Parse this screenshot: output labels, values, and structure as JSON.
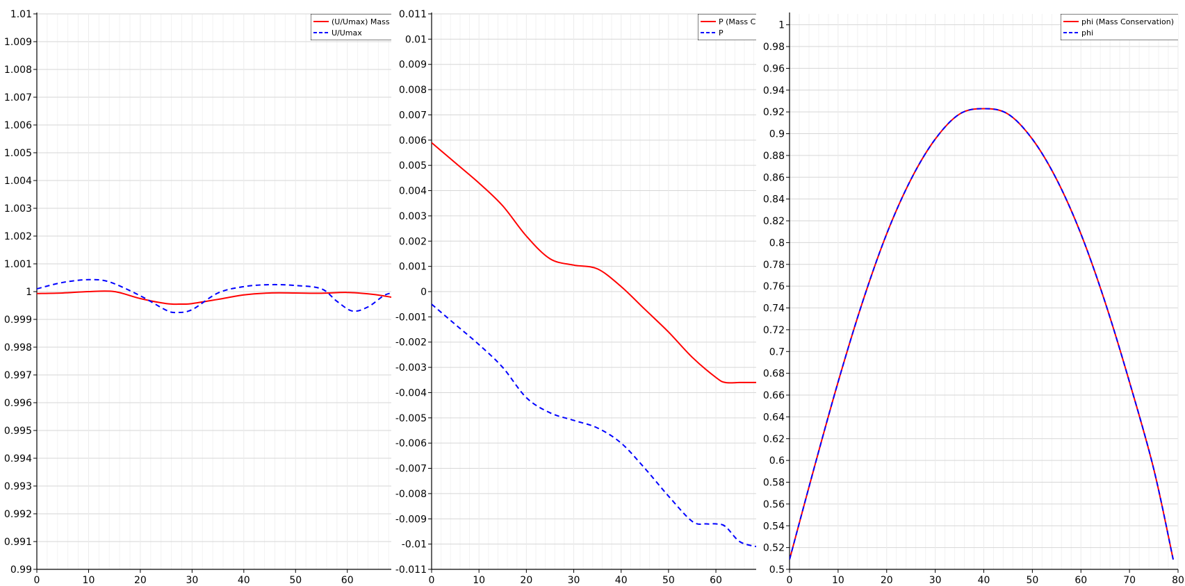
{
  "chart_data": [
    {
      "type": "line",
      "title": "",
      "xlabel": "",
      "ylabel": "",
      "xlim": [
        0,
        68.5
      ],
      "ylim": [
        0.99,
        1.01
      ],
      "xticks": [
        "0",
        "10",
        "20",
        "30",
        "40",
        "50",
        "60"
      ],
      "yticks": [
        "0.99",
        "0.991",
        "0.992",
        "0.993",
        "0.994",
        "0.995",
        "0.996",
        "0.997",
        "0.998",
        "0.999",
        "1",
        "1.001",
        "1.002",
        "1.003",
        "1.004",
        "1.005",
        "1.006",
        "1.007",
        "1.008",
        "1.009",
        "1.01"
      ],
      "grid": true,
      "legend_position": "top-right",
      "series": [
        {
          "name": "(U/Umax) Mass",
          "color": "#ff0000",
          "dash": "solid",
          "x": [
            0,
            5,
            10,
            15,
            20,
            25,
            28,
            30,
            35,
            40,
            45,
            50,
            55,
            60,
            65,
            68.5
          ],
          "y": [
            0.99993,
            0.99995,
            1.0,
            1.0,
            0.99975,
            0.99957,
            0.99955,
            0.99957,
            0.99972,
            0.99988,
            0.99995,
            0.99995,
            0.99994,
            0.99997,
            0.9999,
            0.9998
          ]
        },
        {
          "name": "U/Umax",
          "color": "#0000ff",
          "dash": "dashed",
          "x": [
            0,
            5,
            10,
            14,
            20,
            25,
            27,
            30,
            35,
            40,
            45,
            50,
            55,
            58,
            61,
            64,
            67,
            68.5
          ],
          "y": [
            1.0001,
            1.00033,
            1.00043,
            1.00035,
            0.99985,
            0.99933,
            0.99925,
            0.99935,
            0.99995,
            1.00018,
            1.00025,
            1.00022,
            1.0001,
            0.99965,
            0.9993,
            0.99945,
            0.99985,
            0.99995
          ]
        }
      ]
    },
    {
      "type": "line",
      "title": "",
      "xlabel": "",
      "ylabel": "",
      "xlim": [
        0,
        68.5
      ],
      "ylim": [
        -0.011,
        0.011
      ],
      "xticks": [
        "0",
        "10",
        "20",
        "30",
        "40",
        "50",
        "60"
      ],
      "yticks": [
        "-0.011",
        "-0.01",
        "-0.009",
        "-0.008",
        "-0.007",
        "-0.006",
        "-0.005",
        "-0.004",
        "-0.003",
        "-0.002",
        "-0.001",
        "0",
        "0.001",
        "0.002",
        "0.003",
        "0.004",
        "0.005",
        "0.006",
        "0.007",
        "0.008",
        "0.009",
        "0.01",
        "0.011"
      ],
      "grid": true,
      "legend_position": "top-right",
      "series": [
        {
          "name": "P (Mass C",
          "color": "#ff0000",
          "dash": "solid",
          "x": [
            0,
            5,
            10,
            15,
            20,
            25,
            30,
            35,
            40,
            45,
            50,
            55,
            60,
            62,
            65,
            68.5
          ],
          "y": [
            0.0059,
            0.0051,
            0.0043,
            0.0034,
            0.0022,
            0.0013,
            0.00105,
            0.0009,
            0.0002,
            -0.0007,
            -0.0016,
            -0.0026,
            -0.0034,
            -0.0036,
            -0.0036,
            -0.0036
          ]
        },
        {
          "name": "P",
          "color": "#0000ff",
          "dash": "dashed",
          "x": [
            0,
            5,
            10,
            15,
            20,
            25,
            30,
            35,
            40,
            45,
            50,
            55,
            58,
            60,
            62,
            65,
            68.5
          ],
          "y": [
            -0.0005,
            -0.0013,
            -0.0021,
            -0.003,
            -0.0042,
            -0.0048,
            -0.0051,
            -0.0054,
            -0.006,
            -0.007,
            -0.0081,
            -0.0091,
            -0.0092,
            -0.0092,
            -0.0093,
            -0.0099,
            -0.0101
          ]
        }
      ]
    },
    {
      "type": "line",
      "title": "",
      "xlabel": "",
      "ylabel": "",
      "xlim": [
        0,
        80
      ],
      "ylim": [
        0.5,
        1.01
      ],
      "xticks": [
        "0",
        "10",
        "20",
        "30",
        "40",
        "50",
        "60",
        "70",
        "80"
      ],
      "yticks": [
        "0.5",
        "0.52",
        "0.54",
        "0.56",
        "0.58",
        "0.6",
        "0.62",
        "0.64",
        "0.66",
        "0.68",
        "0.7",
        "0.72",
        "0.74",
        "0.76",
        "0.78",
        "0.8",
        "0.82",
        "0.84",
        "0.86",
        "0.88",
        "0.9",
        "0.92",
        "0.94",
        "0.96",
        "0.98",
        "1"
      ],
      "grid": true,
      "legend_position": "top-right",
      "series": [
        {
          "name": "phi (Mass Conservation)",
          "color": "#ff0000",
          "dash": "solid",
          "x": [
            0,
            5,
            10,
            15,
            20,
            25,
            30,
            35,
            40,
            45,
            50,
            55,
            60,
            65,
            70,
            75,
            79
          ],
          "y": [
            0.509,
            0.592,
            0.672,
            0.745,
            0.808,
            0.858,
            0.895,
            0.918,
            0.923,
            0.918,
            0.895,
            0.858,
            0.808,
            0.745,
            0.672,
            0.592,
            0.509
          ]
        },
        {
          "name": "phi",
          "color": "#0000ff",
          "dash": "dashed",
          "x": [
            0,
            5,
            10,
            15,
            20,
            25,
            30,
            35,
            40,
            45,
            50,
            55,
            60,
            65,
            70,
            75,
            79
          ],
          "y": [
            0.509,
            0.592,
            0.672,
            0.745,
            0.808,
            0.858,
            0.895,
            0.918,
            0.923,
            0.918,
            0.895,
            0.858,
            0.808,
            0.745,
            0.672,
            0.592,
            0.509
          ]
        }
      ]
    }
  ]
}
